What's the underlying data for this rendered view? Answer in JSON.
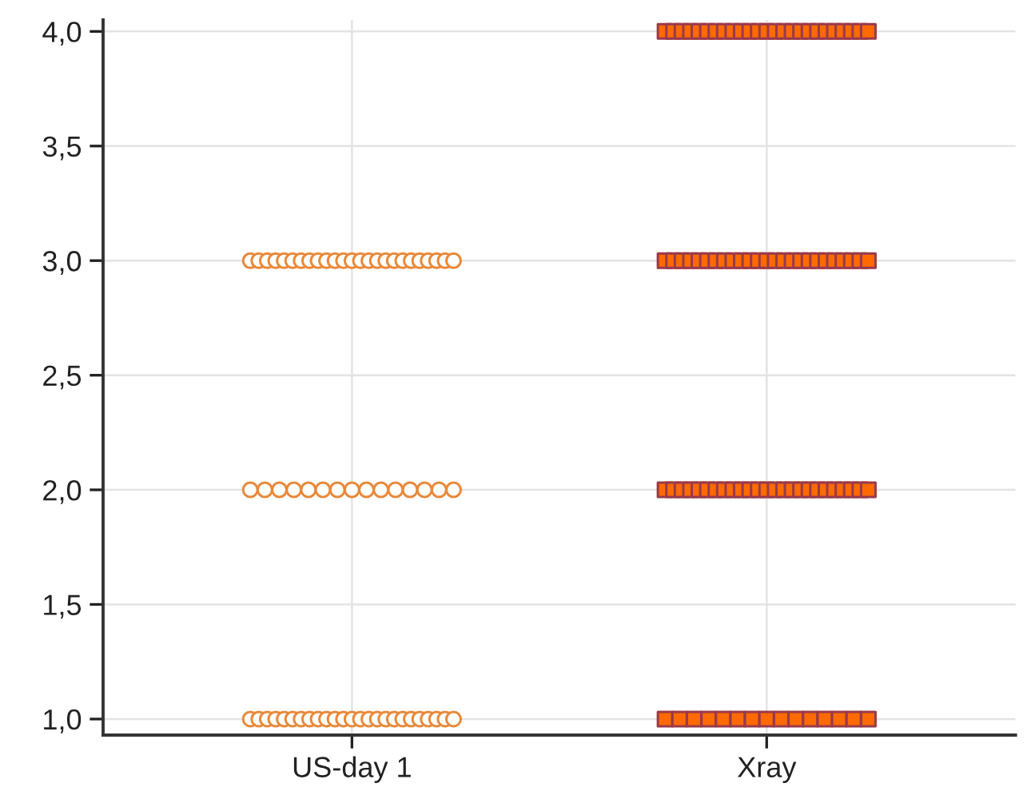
{
  "chart_data": {
    "type": "scatter",
    "categories": [
      "US-day 1",
      "Xray"
    ],
    "ylim": [
      0.93,
      4.05
    ],
    "yticks": [
      {
        "value": 1.0,
        "label": "1,0"
      },
      {
        "value": 1.5,
        "label": "1,5"
      },
      {
        "value": 2.0,
        "label": "2,0"
      },
      {
        "value": 2.5,
        "label": "2,5"
      },
      {
        "value": 3.0,
        "label": "3,0"
      },
      {
        "value": 3.5,
        "label": "3,5"
      },
      {
        "value": 4.0,
        "label": "4,0"
      }
    ],
    "grid": true,
    "series": [
      {
        "color": "#e8893a",
        "marker": "circle",
        "x": [
          "US-day 1",
          "US-day 1",
          "US-day 1",
          "US-day 1",
          "US-day 1",
          "US-day 1",
          "US-day 1",
          "US-day 1",
          "US-day 1",
          "US-day 1",
          "US-day 1",
          "US-day 1",
          "US-day 1",
          "US-day 1",
          "US-day 1",
          "US-day 1",
          "US-day 1",
          "US-day 1",
          "US-day 1",
          "US-day 1",
          "US-day 1",
          "US-day 1",
          "US-day 1",
          "US-day 1",
          "US-day 1",
          "US-day 1",
          "US-day 1",
          "US-day 1",
          "US-day 1",
          "US-day 1",
          "US-day 1",
          "US-day 1",
          "US-day 1",
          "US-day 1",
          "US-day 1",
          "US-day 1",
          "US-day 1",
          "US-day 1",
          "US-day 1",
          "US-day 1",
          "US-day 1",
          "US-day 1",
          "US-day 1",
          "US-day 1",
          "US-day 1",
          "US-day 1",
          "US-day 1",
          "US-day 1",
          "US-day 1",
          "US-day 1",
          "US-day 1",
          "US-day 1",
          "US-day 1",
          "US-day 1",
          "US-day 1",
          "US-day 1",
          "US-day 1",
          "US-day 1",
          "US-day 1",
          "US-day 1",
          "US-day 1",
          "US-day 1",
          "US-day 1",
          "US-day 1",
          "US-day 1"
        ],
        "values": [
          1,
          1,
          1,
          1,
          1,
          1,
          1,
          1,
          1,
          1,
          1,
          1,
          1,
          1,
          1,
          1,
          1,
          1,
          1,
          1,
          1,
          1,
          1,
          1,
          1,
          2,
          2,
          2,
          2,
          2,
          2,
          2,
          2,
          2,
          2,
          2,
          2,
          2,
          2,
          2,
          3,
          3,
          3,
          3,
          3,
          3,
          3,
          3,
          3,
          3,
          3,
          3,
          3,
          3,
          3,
          3,
          3,
          3,
          3,
          3,
          3,
          3,
          3,
          3,
          3
        ]
      },
      {
        "color": "#ff6a00",
        "marker": "square",
        "x": [
          "Xray",
          "Xray",
          "Xray",
          "Xray",
          "Xray",
          "Xray",
          "Xray",
          "Xray",
          "Xray",
          "Xray",
          "Xray",
          "Xray",
          "Xray",
          "Xray",
          "Xray",
          "Xray",
          "Xray",
          "Xray",
          "Xray",
          "Xray",
          "Xray",
          "Xray",
          "Xray",
          "Xray",
          "Xray",
          "Xray",
          "Xray",
          "Xray",
          "Xray",
          "Xray",
          "Xray",
          "Xray",
          "Xray",
          "Xray",
          "Xray",
          "Xray",
          "Xray",
          "Xray",
          "Xray",
          "Xray",
          "Xray",
          "Xray",
          "Xray",
          "Xray",
          "Xray",
          "Xray",
          "Xray",
          "Xray",
          "Xray",
          "Xray",
          "Xray",
          "Xray",
          "Xray",
          "Xray",
          "Xray",
          "Xray",
          "Xray",
          "Xray",
          "Xray",
          "Xray",
          "Xray",
          "Xray",
          "Xray",
          "Xray",
          "Xray",
          "Xray",
          "Xray",
          "Xray",
          "Xray",
          "Xray",
          "Xray",
          "Xray",
          "Xray",
          "Xray",
          "Xray",
          "Xray",
          "Xray",
          "Xray",
          "Xray",
          "Xray",
          "Xray",
          "Xray",
          "Xray",
          "Xray",
          "Xray",
          "Xray",
          "Xray",
          "Xray",
          "Xray",
          "Xray"
        ],
        "values": [
          1,
          1,
          1,
          1,
          1,
          1,
          1,
          1,
          1,
          1,
          1,
          1,
          1,
          1,
          1,
          2,
          2,
          2,
          2,
          2,
          2,
          2,
          2,
          2,
          2,
          2,
          2,
          2,
          2,
          2,
          2,
          2,
          2,
          2,
          2,
          2,
          2,
          2,
          2,
          2,
          3,
          3,
          3,
          3,
          3,
          3,
          3,
          3,
          3,
          3,
          3,
          3,
          3,
          3,
          3,
          3,
          3,
          3,
          3,
          3,
          3,
          3,
          3,
          3,
          3,
          4,
          4,
          4,
          4,
          4,
          4,
          4,
          4,
          4,
          4,
          4,
          4,
          4,
          4,
          4,
          4,
          4,
          4,
          4,
          4,
          4,
          4,
          4,
          4,
          4
        ]
      }
    ]
  }
}
